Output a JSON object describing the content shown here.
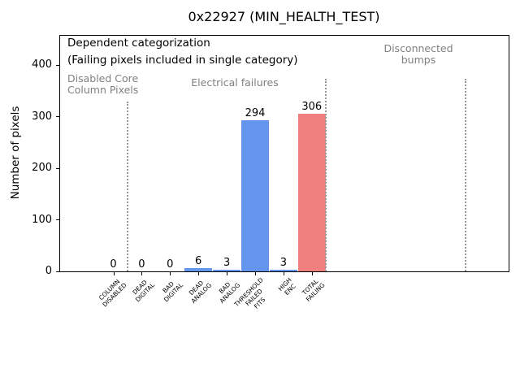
{
  "figure": {
    "title": "0x22927 (MIN_HEALTH_TEST)"
  },
  "chart_data": {
    "type": "bar",
    "title": "0x22927 (MIN_HEALTH_TEST)",
    "xlabel": "",
    "ylabel": "Number of pixels",
    "ylim": [
      0,
      460
    ],
    "yticks": [
      0,
      100,
      200,
      300,
      400
    ],
    "grid": false,
    "categories": [
      "COLUMN\nDISABLED",
      "DEAD\nDIGITAL",
      "BAD\nDIGITAL",
      "DEAD\nANALOG",
      "BAD\nANALOG",
      "THRESHOLD\nFAILED\nFITS",
      "HIGH\nENC",
      "TOTAL\nFAILING"
    ],
    "values": [
      0,
      0,
      0,
      6,
      3,
      294,
      3,
      306
    ],
    "bar_value_labels": [
      "0",
      "0",
      "0",
      "6",
      "3",
      "294",
      "3",
      "306"
    ],
    "bar_colors": [
      "#6495ED",
      "#6495ED",
      "#6495ED",
      "#6495ED",
      "#6495ED",
      "#6495ED",
      "#6495ED",
      "#F08080"
    ],
    "annotations": {
      "note_line1": "Dependent categorization",
      "note_line2": "(Failing pixels included in single category)",
      "region_labels": [
        "Disabled Core\nColumn Pixels",
        "Electrical failures",
        "Disconnected\nbumps"
      ]
    },
    "colors": {
      "bar_blue": "#6495ED",
      "bar_red": "#F08080",
      "annotation_gray": "#808080",
      "separator_gray": "#999999",
      "axis_black": "#000000"
    }
  }
}
